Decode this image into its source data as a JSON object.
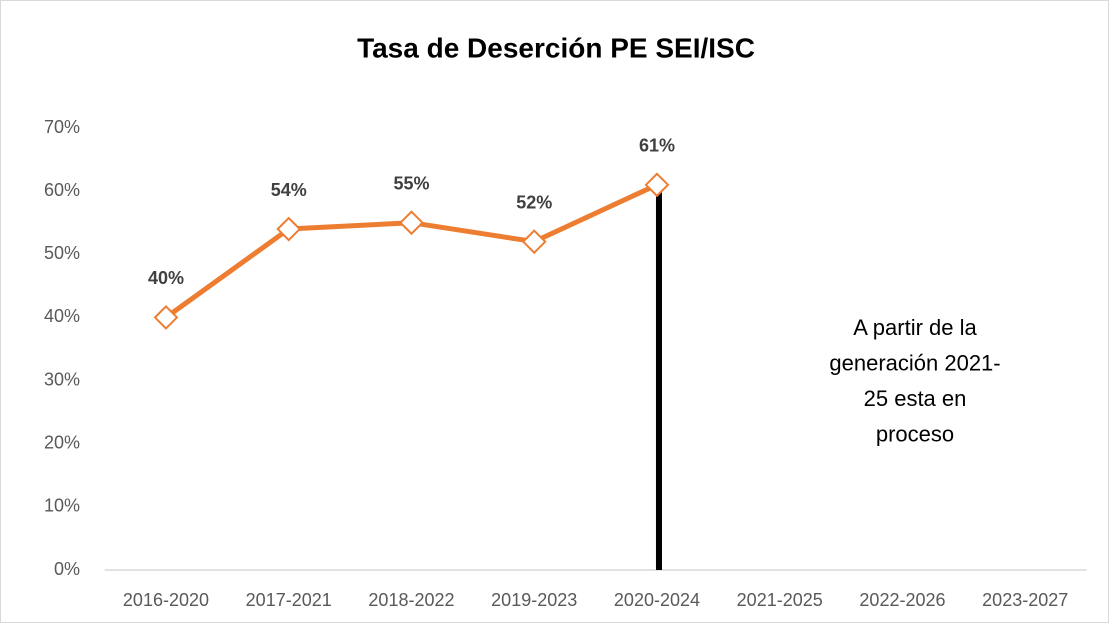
{
  "chart_data": {
    "type": "line",
    "title": "Tasa de Deserción PE SEI/ISC",
    "categories": [
      "2016-2020",
      "2017-2021",
      "2018-2022",
      "2019-2023",
      "2020-2024",
      "2021-2025",
      "2022-2026",
      "2023-2027"
    ],
    "series": [
      {
        "color": "#ed7d31",
        "values": [
          40,
          54,
          55,
          52,
          61,
          null,
          null,
          null
        ],
        "value_labels": [
          "40%",
          "54%",
          "55%",
          "52%",
          "61%",
          null,
          null,
          null
        ]
      }
    ],
    "ylim": [
      0,
      70
    ],
    "yticks": [
      {
        "value": 0,
        "label": "0%"
      },
      {
        "value": 10,
        "label": "10%"
      },
      {
        "value": 20,
        "label": "20%"
      },
      {
        "value": 30,
        "label": "30%"
      },
      {
        "value": 40,
        "label": "40%"
      },
      {
        "value": 50,
        "label": "50%"
      },
      {
        "value": 60,
        "label": "60%"
      },
      {
        "value": 70,
        "label": "70%"
      }
    ],
    "grid": false,
    "annotation": [
      "A partir de la",
      "generación 2021-",
      "25 esta en",
      "proceso"
    ]
  }
}
